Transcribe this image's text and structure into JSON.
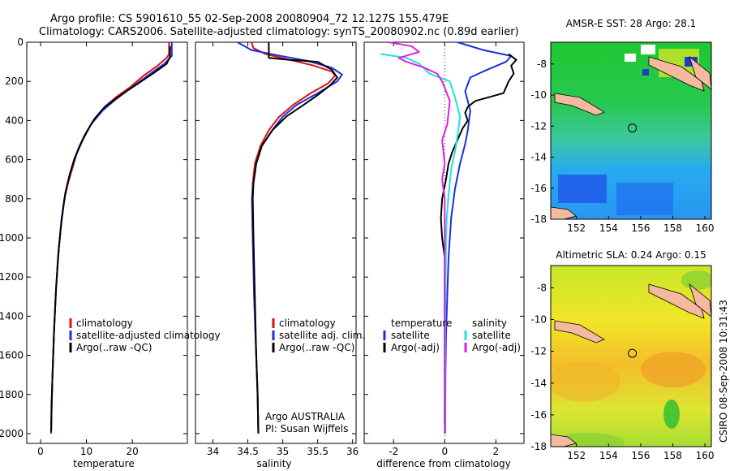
{
  "header": {
    "line1": "Argo profile: CS 5901610_55 02-Sep-2008 20080904_72 12.127S 155.479E",
    "line2": "Climatology: CARS2006. Satellite-adjusted climatology: synTS_20080902.nc (0.89d earlier)"
  },
  "side_label": "CSIRO 08-Sep-2008 10:31:43",
  "credit": {
    "line1": "Argo AUSTRALIA",
    "line2": "PI: Susan Wijffels"
  },
  "colors": {
    "red": "#e01010",
    "blue": "#1530e0",
    "black": "#000000",
    "cyan": "#20e0e0",
    "magenta": "#e020e0"
  },
  "chart_data": [
    {
      "type": "line",
      "xlabel": "temperature",
      "xlim": [
        -3,
        32
      ],
      "xticks": [
        0,
        10,
        20
      ],
      "ylim": [
        2050,
        0
      ],
      "yticks": [
        0,
        200,
        400,
        600,
        800,
        1000,
        1200,
        1400,
        1600,
        1800,
        2000
      ],
      "legend": [
        "climatology",
        "satellite-adjusted climatology",
        "Argo(..raw -QC)"
      ],
      "series": [
        {
          "name": "climatology",
          "color": "red",
          "points": [
            [
              28.0,
              0
            ],
            [
              28.0,
              60
            ],
            [
              27.5,
              80
            ],
            [
              25.5,
              120
            ],
            [
              22.5,
              170
            ],
            [
              19.5,
              230
            ],
            [
              16.5,
              280
            ],
            [
              14.0,
              330
            ],
            [
              11.5,
              400
            ],
            [
              9.5,
              480
            ],
            [
              8.0,
              560
            ],
            [
              7.0,
              640
            ],
            [
              6.0,
              720
            ],
            [
              5.2,
              800
            ],
            [
              4.4,
              950
            ],
            [
              3.8,
              1100
            ],
            [
              3.3,
              1300
            ],
            [
              2.9,
              1500
            ],
            [
              2.6,
              1700
            ],
            [
              2.4,
              1900
            ],
            [
              2.3,
              2000
            ]
          ]
        },
        {
          "name": "satellite-adjusted climatology",
          "color": "blue",
          "points": [
            [
              28.6,
              0
            ],
            [
              28.6,
              70
            ],
            [
              27.0,
              110
            ],
            [
              24.0,
              160
            ],
            [
              20.5,
              220
            ],
            [
              16.5,
              290
            ],
            [
              13.5,
              350
            ],
            [
              11.0,
              420
            ],
            [
              9.2,
              500
            ],
            [
              7.7,
              580
            ],
            [
              6.7,
              650
            ],
            [
              5.8,
              730
            ],
            [
              5.1,
              820
            ],
            [
              4.4,
              950
            ],
            [
              3.8,
              1100
            ],
            [
              3.3,
              1300
            ],
            [
              2.9,
              1500
            ],
            [
              2.6,
              1700
            ],
            [
              2.4,
              1900
            ],
            [
              2.3,
              2000
            ]
          ]
        },
        {
          "name": "Argo(..raw -QC)",
          "color": "black",
          "points": [
            [
              28.2,
              20
            ],
            [
              28.2,
              75
            ],
            [
              27.5,
              110
            ],
            [
              24.5,
              160
            ],
            [
              21.0,
              215
            ],
            [
              17.5,
              270
            ],
            [
              14.0,
              330
            ],
            [
              11.8,
              390
            ],
            [
              10.0,
              460
            ],
            [
              8.5,
              530
            ],
            [
              7.3,
              600
            ],
            [
              6.3,
              680
            ],
            [
              5.4,
              770
            ],
            [
              4.6,
              900
            ],
            [
              4.0,
              1050
            ],
            [
              3.4,
              1250
            ],
            [
              3.0,
              1450
            ],
            [
              2.7,
              1650
            ],
            [
              2.4,
              1850
            ],
            [
              2.3,
              1990
            ]
          ]
        }
      ]
    },
    {
      "type": "line",
      "xlabel": "salinity",
      "xlim": [
        33.75,
        36.05
      ],
      "xticks": [
        34,
        34.5,
        35,
        35.5,
        36
      ],
      "ylim": [
        2050,
        0
      ],
      "legend": [
        "climatology",
        "satellite adj. clim.",
        "Argo(..raw -QC)"
      ],
      "series": [
        {
          "name": "climatology",
          "color": "red",
          "points": [
            [
              34.55,
              0
            ],
            [
              34.58,
              30
            ],
            [
              34.75,
              60
            ],
            [
              35.1,
              90
            ],
            [
              35.45,
              120
            ],
            [
              35.7,
              150
            ],
            [
              35.75,
              170
            ],
            [
              35.65,
              210
            ],
            [
              35.4,
              260
            ],
            [
              35.15,
              320
            ],
            [
              34.95,
              380
            ],
            [
              34.8,
              450
            ],
            [
              34.68,
              530
            ],
            [
              34.6,
              620
            ],
            [
              34.57,
              720
            ],
            [
              34.56,
              800
            ],
            [
              34.57,
              1000
            ],
            [
              34.59,
              1300
            ],
            [
              34.62,
              1600
            ],
            [
              34.64,
              1800
            ],
            [
              34.65,
              2000
            ]
          ]
        },
        {
          "name": "satellite adj. clim.",
          "color": "blue",
          "points": [
            [
              34.35,
              0
            ],
            [
              34.45,
              20
            ],
            [
              34.55,
              40
            ],
            [
              34.9,
              65
            ],
            [
              35.35,
              95
            ],
            [
              35.7,
              130
            ],
            [
              35.85,
              165
            ],
            [
              35.78,
              200
            ],
            [
              35.5,
              260
            ],
            [
              35.2,
              320
            ],
            [
              35.0,
              380
            ],
            [
              34.85,
              450
            ],
            [
              34.7,
              530
            ],
            [
              34.62,
              620
            ],
            [
              34.58,
              720
            ],
            [
              34.56,
              800
            ],
            [
              34.57,
              1000
            ],
            [
              34.59,
              1300
            ],
            [
              34.62,
              1600
            ],
            [
              34.64,
              1800
            ],
            [
              34.65,
              2000
            ]
          ]
        },
        {
          "name": "Argo(..raw -QC)",
          "color": "black",
          "points": [
            [
              34.8,
              0
            ],
            [
              34.8,
              80
            ],
            [
              35.1,
              90
            ],
            [
              35.5,
              100
            ],
            [
              35.7,
              140
            ],
            [
              35.78,
              180
            ],
            [
              35.68,
              220
            ],
            [
              35.5,
              270
            ],
            [
              35.3,
              320
            ],
            [
              35.05,
              380
            ],
            [
              34.85,
              450
            ],
            [
              34.7,
              530
            ],
            [
              34.62,
              620
            ],
            [
              34.58,
              720
            ],
            [
              34.57,
              800
            ],
            [
              34.58,
              1000
            ],
            [
              34.6,
              1300
            ],
            [
              34.62,
              1600
            ],
            [
              34.64,
              1800
            ],
            [
              34.65,
              2000
            ]
          ]
        }
      ]
    },
    {
      "type": "line",
      "xlabel": "difference from climatology",
      "xlim": [
        -3.15,
        3.1
      ],
      "xticks": [
        -2,
        0,
        2
      ],
      "ylim": [
        2050,
        0
      ],
      "legend": [
        "temperature",
        "satellite",
        "Argo(-adj)",
        "salinity",
        "satellite",
        "Argo(-adj)"
      ],
      "series": [
        {
          "name": "satellite",
          "group": "temperature",
          "color": "blue",
          "points": [
            [
              0.5,
              0
            ],
            [
              1.5,
              40
            ],
            [
              2.6,
              70
            ],
            [
              2.4,
              100
            ],
            [
              1.5,
              150
            ],
            [
              1.0,
              180
            ],
            [
              0.8,
              250
            ],
            [
              1.0,
              350
            ],
            [
              0.9,
              450
            ],
            [
              0.8,
              520
            ],
            [
              0.6,
              620
            ],
            [
              0.4,
              750
            ],
            [
              0.25,
              900
            ],
            [
              0.15,
              1100
            ],
            [
              0.1,
              1300
            ],
            [
              0.05,
              1500
            ],
            [
              0.03,
              1700
            ],
            [
              0.02,
              2000
            ]
          ]
        },
        {
          "name": "Argo(-adj)",
          "group": "temperature",
          "color": "black",
          "points": [
            [
              2.5,
              60
            ],
            [
              2.8,
              90
            ],
            [
              2.6,
              120
            ],
            [
              2.7,
              160
            ],
            [
              2.5,
              200
            ],
            [
              2.3,
              260
            ],
            [
              1.2,
              300
            ],
            [
              0.9,
              330
            ],
            [
              0.8,
              360
            ],
            [
              0.9,
              400
            ],
            [
              0.7,
              440
            ],
            [
              0.5,
              500
            ],
            [
              0.3,
              560
            ],
            [
              0.15,
              620
            ],
            [
              0.05,
              700
            ],
            [
              -0.1,
              800
            ],
            [
              -0.15,
              900
            ],
            [
              -0.1,
              1000
            ],
            [
              0.0,
              1100
            ],
            [
              0.0,
              1300
            ],
            [
              0.0,
              1500
            ],
            [
              0.0,
              1700
            ],
            [
              0.0,
              1800
            ],
            [
              0.0,
              1950
            ]
          ]
        },
        {
          "name": "satellite",
          "group": "salinity",
          "color": "cyan",
          "points": [
            [
              -2.5,
              60
            ],
            [
              -1.5,
              80
            ],
            [
              -1.0,
              110
            ],
            [
              -0.6,
              160
            ],
            [
              0.2,
              200
            ],
            [
              0.4,
              280
            ],
            [
              0.6,
              380
            ],
            [
              0.5,
              480
            ],
            [
              0.4,
              560
            ],
            [
              0.25,
              650
            ],
            [
              0.15,
              780
            ],
            [
              0.08,
              900
            ],
            [
              0.05,
              1000
            ],
            [
              0.03,
              1300
            ],
            [
              0.02,
              1600
            ],
            [
              0.01,
              2000
            ]
          ]
        },
        {
          "name": "Argo(-adj)",
          "group": "salinity",
          "color": "magenta",
          "points": [
            [
              -2.2,
              0
            ],
            [
              -1.3,
              20
            ],
            [
              -1.0,
              50
            ],
            [
              -1.8,
              80
            ],
            [
              -1.5,
              100
            ],
            [
              -0.8,
              130
            ],
            [
              -0.3,
              160
            ],
            [
              -0.1,
              200
            ],
            [
              0.2,
              300
            ],
            [
              0.1,
              420
            ],
            [
              -0.1,
              500
            ],
            [
              -0.05,
              560
            ],
            [
              0.0,
              620
            ],
            [
              -0.1,
              700
            ],
            [
              0.0,
              800
            ],
            [
              0.0,
              1000
            ],
            [
              0.0,
              1300
            ],
            [
              0.0,
              1500
            ],
            [
              0.0,
              1800
            ],
            [
              0.0,
              2000
            ]
          ]
        }
      ]
    },
    {
      "type": "heatmap",
      "title": "AMSR-E SST: 28 Argo: 28.1",
      "xlim": [
        150.4,
        160.4
      ],
      "ylim": [
        -18,
        -6.6
      ],
      "xticks": [
        152,
        154,
        156,
        158,
        160
      ],
      "yticks": [
        -8,
        -10,
        -12,
        -14,
        -16,
        -18
      ],
      "marker": [
        155.479,
        -12.127
      ]
    },
    {
      "type": "heatmap",
      "title": "Altimetric SLA: 0.24 Argo: 0.15",
      "xlim": [
        150.4,
        160.4
      ],
      "ylim": [
        -18,
        -6.6
      ],
      "xticks": [
        152,
        154,
        156,
        158,
        160
      ],
      "yticks": [
        -8,
        -10,
        -12,
        -14,
        -16,
        -18
      ],
      "marker": [
        155.479,
        -12.127
      ]
    }
  ]
}
